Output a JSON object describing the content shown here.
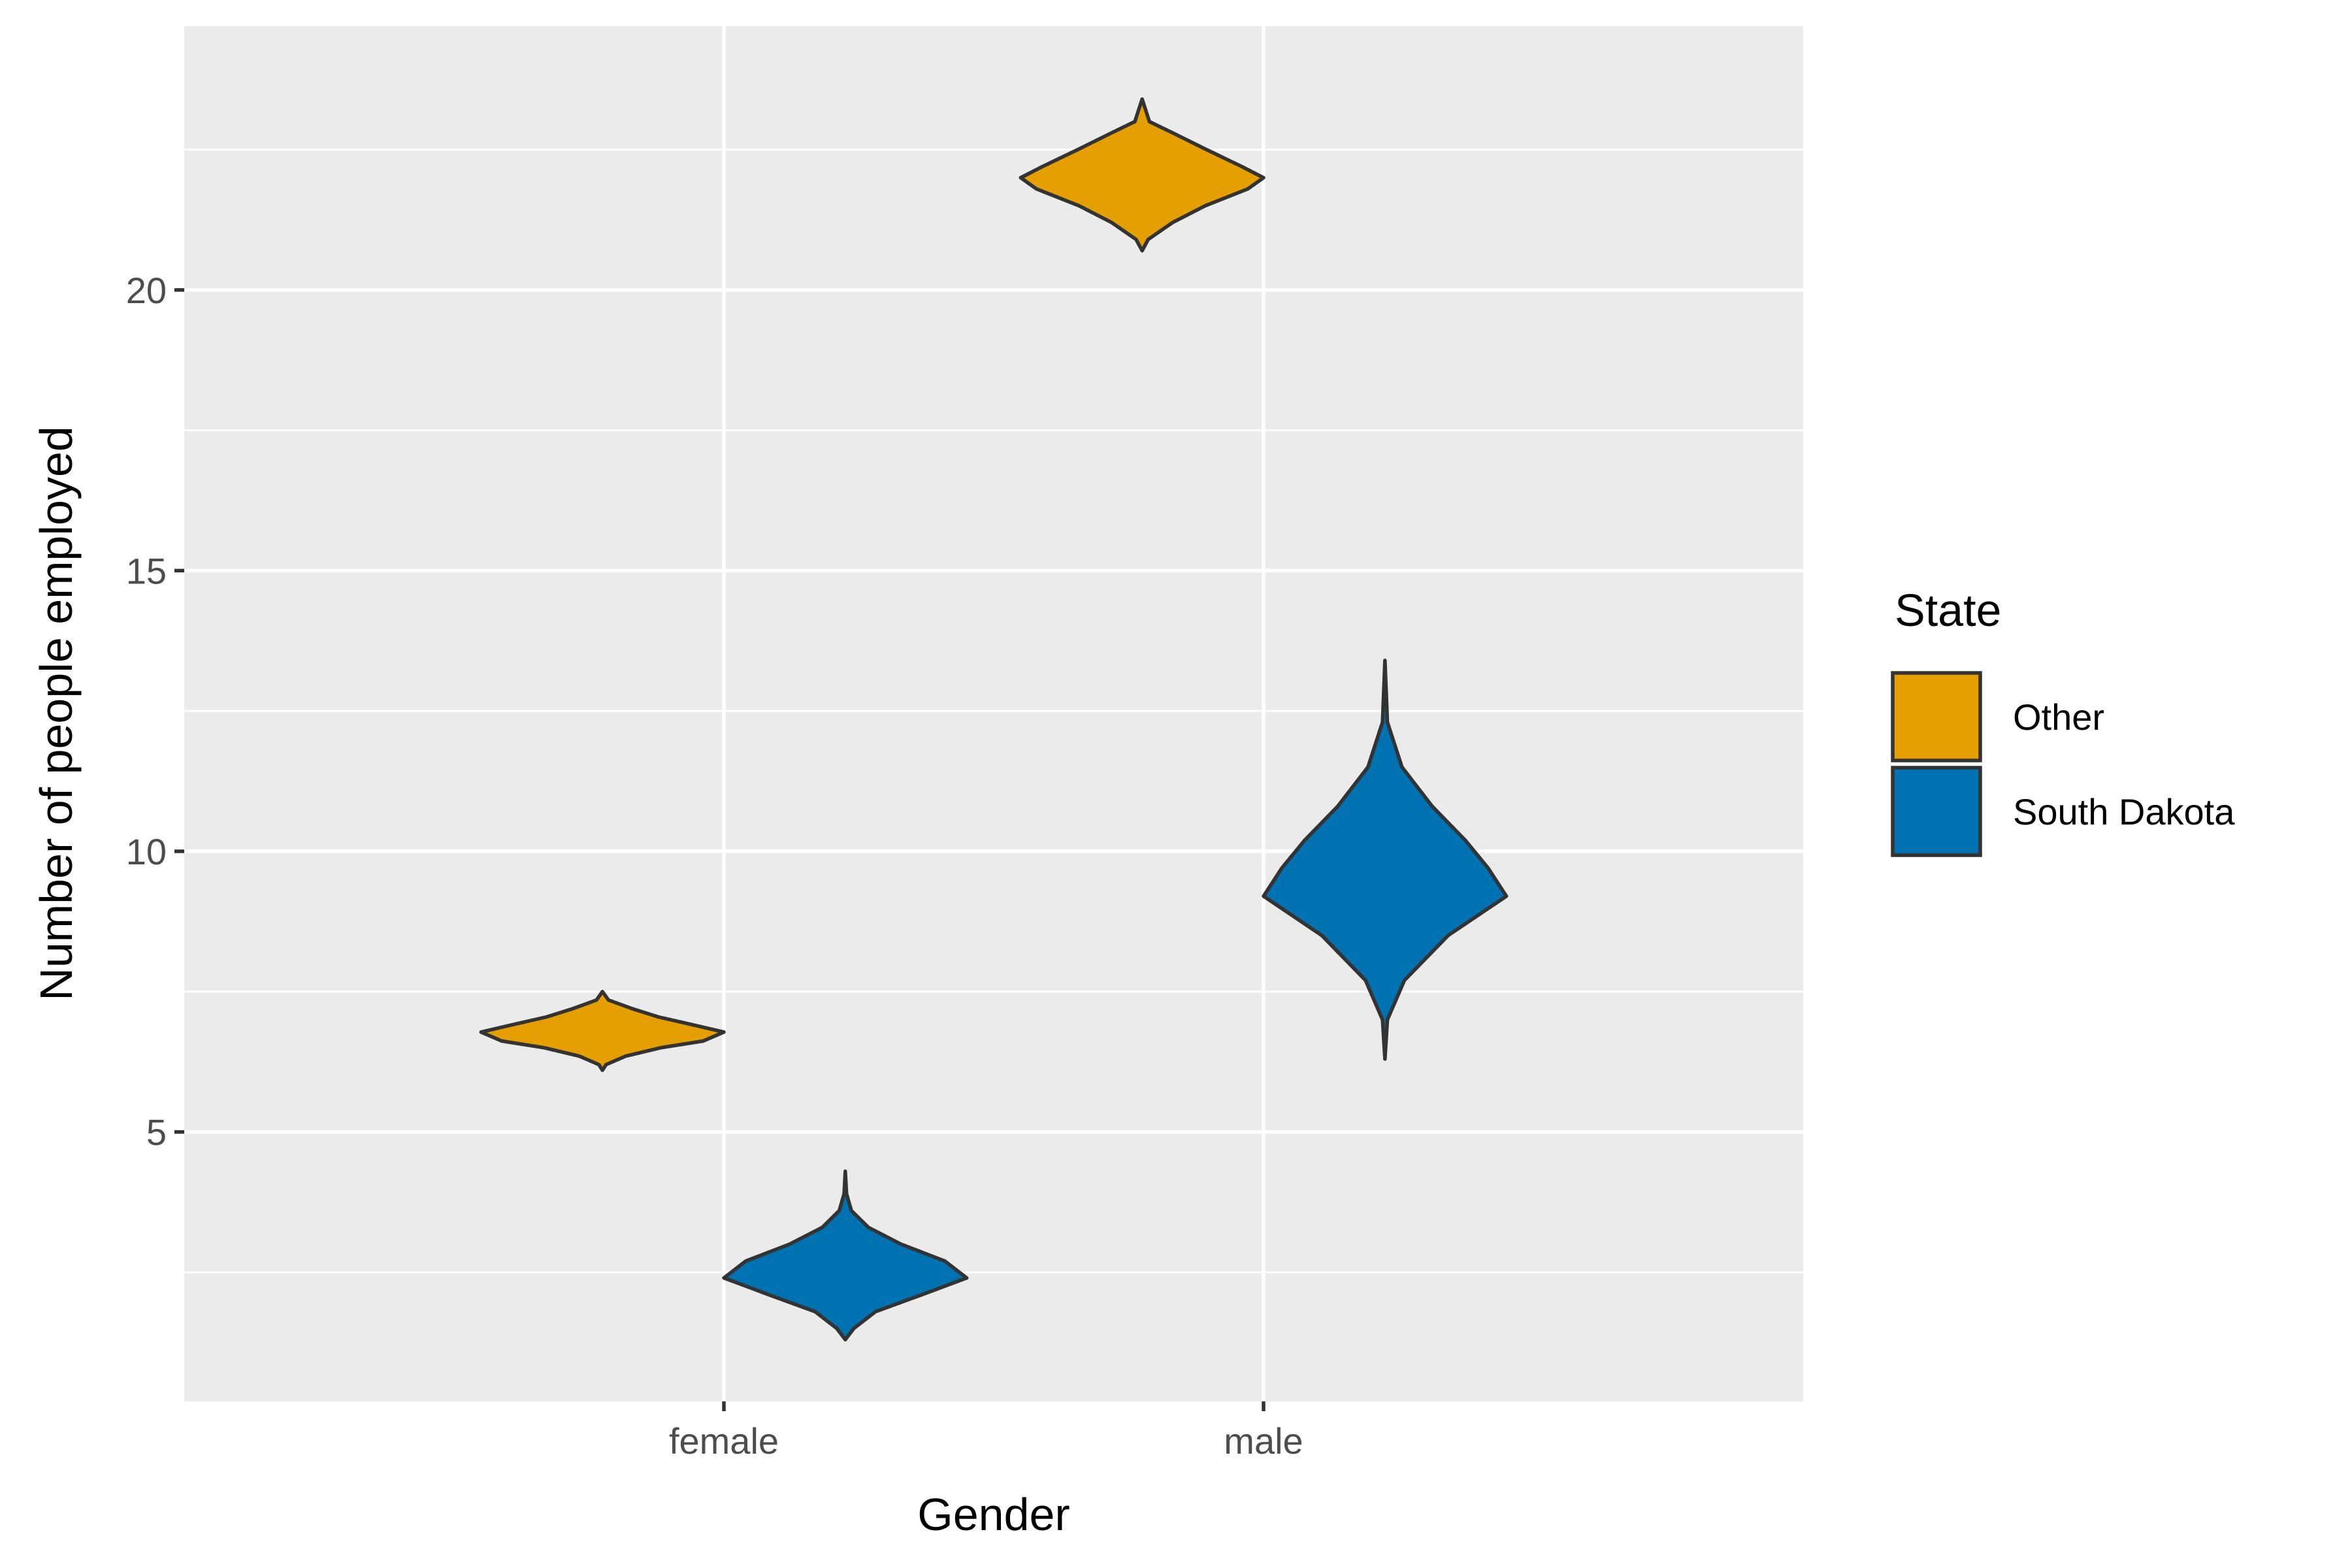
{
  "chart_data": {
    "type": "violin",
    "title": "",
    "xlabel": "Gender",
    "ylabel": "Number of people employed",
    "categories": [
      "female",
      "male"
    ],
    "ylim": [
      0.2,
      24.7
    ],
    "y_ticks": [
      5,
      10,
      15,
      20
    ],
    "y_tick_labels": [
      "5",
      "10",
      "15",
      "20"
    ],
    "grid": true,
    "legend": {
      "title": "State",
      "position": "right"
    },
    "series": [
      {
        "name": "Other",
        "color": "#E69F00",
        "violins": [
          {
            "category": "female",
            "min": 6.1,
            "max": 7.5,
            "density": [
              [
                6.1,
                0.0
              ],
              [
                6.2,
                0.03
              ],
              [
                6.35,
                0.19
              ],
              [
                6.5,
                0.48
              ],
              [
                6.62,
                0.83
              ],
              [
                6.78,
                1.0
              ],
              [
                6.92,
                0.72
              ],
              [
                7.05,
                0.46
              ],
              [
                7.2,
                0.24
              ],
              [
                7.35,
                0.05
              ],
              [
                7.5,
                0.0
              ]
            ]
          },
          {
            "category": "male",
            "min": 20.7,
            "max": 23.4,
            "density": [
              [
                20.7,
                0.0
              ],
              [
                20.9,
                0.05
              ],
              [
                21.2,
                0.25
              ],
              [
                21.5,
                0.52
              ],
              [
                21.8,
                0.87
              ],
              [
                22.0,
                1.0
              ],
              [
                22.2,
                0.82
              ],
              [
                22.5,
                0.53
              ],
              [
                22.8,
                0.25
              ],
              [
                23.0,
                0.06
              ],
              [
                23.4,
                0.0
              ]
            ]
          }
        ]
      },
      {
        "name": "South Dakota",
        "color": "#0072B2",
        "violins": [
          {
            "category": "female",
            "min": 1.3,
            "max": 4.3,
            "density": [
              [
                1.3,
                0.0
              ],
              [
                1.5,
                0.07
              ],
              [
                1.8,
                0.25
              ],
              [
                2.1,
                0.63
              ],
              [
                2.4,
                1.0
              ],
              [
                2.7,
                0.82
              ],
              [
                3.0,
                0.46
              ],
              [
                3.3,
                0.19
              ],
              [
                3.6,
                0.05
              ],
              [
                3.9,
                0.01
              ],
              [
                4.3,
                0.0
              ]
            ]
          },
          {
            "category": "male",
            "min": 6.3,
            "max": 13.4,
            "density": [
              [
                6.3,
                0.0
              ],
              [
                7.0,
                0.02
              ],
              [
                7.7,
                0.16
              ],
              [
                8.5,
                0.52
              ],
              [
                9.2,
                1.0
              ],
              [
                9.7,
                0.85
              ],
              [
                10.2,
                0.66
              ],
              [
                10.8,
                0.39
              ],
              [
                11.5,
                0.14
              ],
              [
                12.3,
                0.02
              ],
              [
                13.4,
                0.0
              ]
            ]
          }
        ]
      }
    ]
  }
}
